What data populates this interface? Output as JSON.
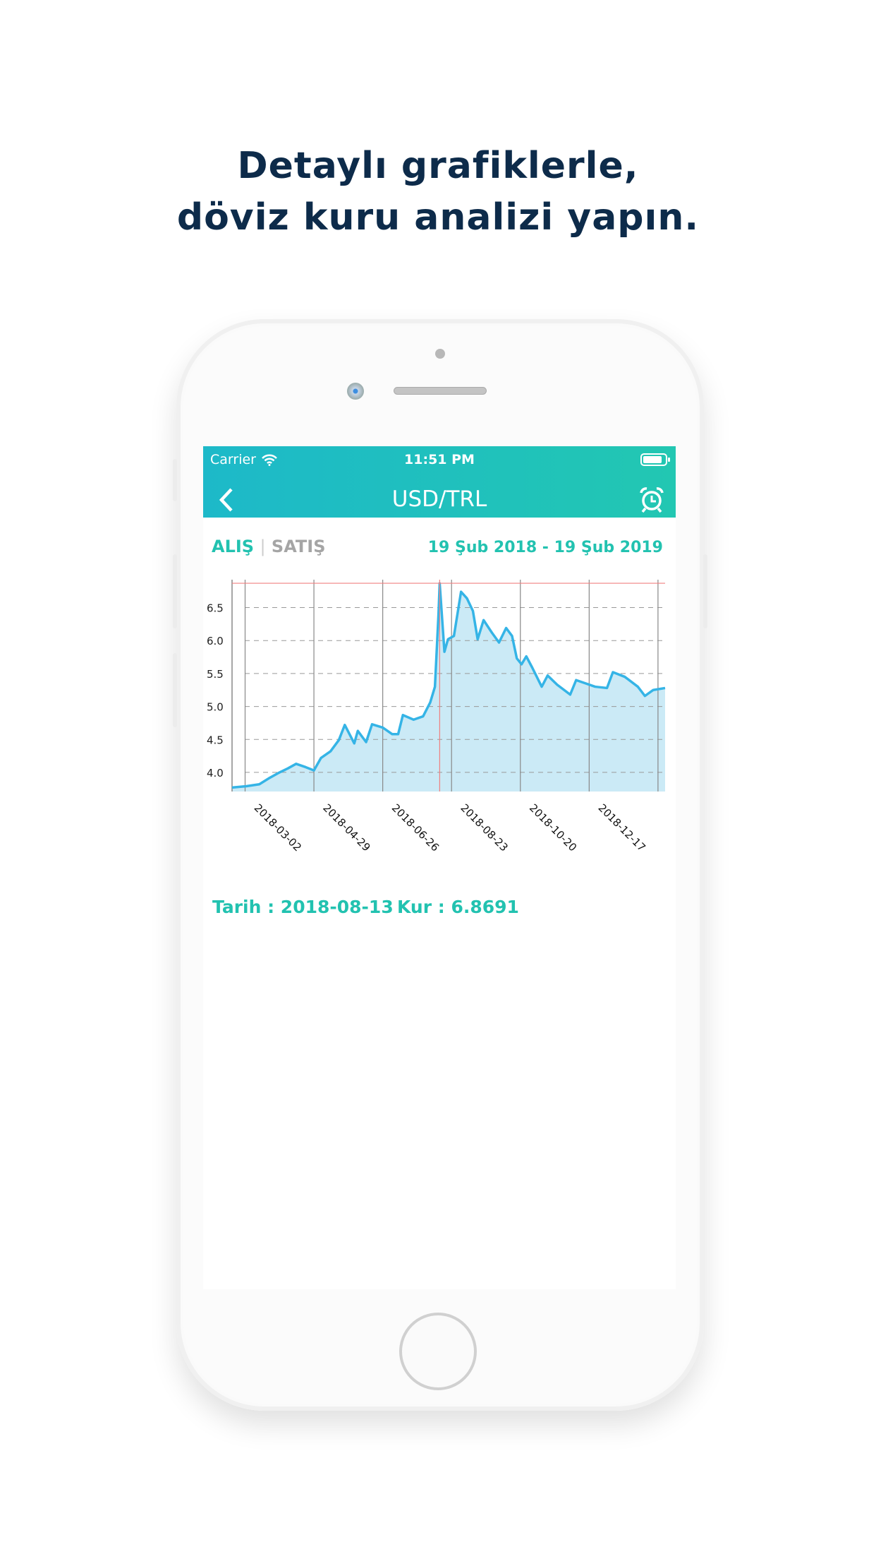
{
  "headline": {
    "line1": "Detaylı grafiklerle,",
    "line2": "döviz kuru analizi yapın."
  },
  "status_bar": {
    "carrier": "Carrier",
    "time": "11:51 PM"
  },
  "nav": {
    "title": "USD/TRL",
    "back_icon": "chevron-left-icon",
    "alarm_icon": "alarm-clock-icon"
  },
  "tabs": {
    "buy": "ALIŞ",
    "separator": "|",
    "sell": "SATIŞ",
    "active": "buy"
  },
  "date_range": "19 Şub 2018 - 19 Şub 2019",
  "selection": {
    "date_label": "Tarih : 2018-08-13",
    "rate_label": "Kur : 6.8691"
  },
  "colors": {
    "accent": "#22c2b0",
    "line": "#35b4e6",
    "fill": "#cbeaf6",
    "crosshair": "#f08080",
    "headline": "#0d2b4a"
  },
  "chart_data": {
    "type": "area",
    "xlim": [
      "2018-02-19",
      "2019-02-19"
    ],
    "ylim": [
      3.71,
      6.87
    ],
    "yticks": [
      "4.0",
      "4.5",
      "5.0",
      "5.5",
      "6.0",
      "6.5"
    ],
    "xticks": [
      "2018-03-02",
      "2018-04-29",
      "2018-06-26",
      "2018-08-23",
      "2018-10-20",
      "2018-12-17"
    ],
    "xgrid_extra": [
      "2019-02-13"
    ],
    "grid": true,
    "highlight": {
      "x": "2018-08-13",
      "y": 6.8691
    },
    "points": [
      [
        "2018-02-19",
        3.77
      ],
      [
        "2018-03-03",
        3.79
      ],
      [
        "2018-03-14",
        3.82
      ],
      [
        "2018-03-22",
        3.91
      ],
      [
        "2018-03-30",
        3.99
      ],
      [
        "2018-04-07",
        4.06
      ],
      [
        "2018-04-14",
        4.13
      ],
      [
        "2018-04-22",
        4.08
      ],
      [
        "2018-04-29",
        4.03
      ],
      [
        "2018-05-05",
        4.22
      ],
      [
        "2018-05-13",
        4.32
      ],
      [
        "2018-05-20",
        4.49
      ],
      [
        "2018-05-25",
        4.72
      ],
      [
        "2018-06-02",
        4.44
      ],
      [
        "2018-06-05",
        4.63
      ],
      [
        "2018-06-12",
        4.46
      ],
      [
        "2018-06-17",
        4.73
      ],
      [
        "2018-06-26",
        4.68
      ],
      [
        "2018-07-04",
        4.58
      ],
      [
        "2018-07-09",
        4.58
      ],
      [
        "2018-07-13",
        4.87
      ],
      [
        "2018-07-22",
        4.8
      ],
      [
        "2018-07-30",
        4.85
      ],
      [
        "2018-08-05",
        5.06
      ],
      [
        "2018-08-09",
        5.3
      ],
      [
        "2018-08-12",
        6.4
      ],
      [
        "2018-08-13",
        6.8691
      ],
      [
        "2018-08-17",
        5.83
      ],
      [
        "2018-08-20",
        6.02
      ],
      [
        "2018-08-25",
        6.07
      ],
      [
        "2018-08-31",
        6.74
      ],
      [
        "2018-09-05",
        6.64
      ],
      [
        "2018-09-10",
        6.45
      ],
      [
        "2018-09-14",
        6.02
      ],
      [
        "2018-09-19",
        6.31
      ],
      [
        "2018-09-26",
        6.12
      ],
      [
        "2018-10-02",
        5.97
      ],
      [
        "2018-10-08",
        6.19
      ],
      [
        "2018-10-13",
        6.07
      ],
      [
        "2018-10-17",
        5.73
      ],
      [
        "2018-10-21",
        5.64
      ],
      [
        "2018-10-25",
        5.76
      ],
      [
        "2018-10-30",
        5.59
      ],
      [
        "2018-11-07",
        5.3
      ],
      [
        "2018-11-12",
        5.47
      ],
      [
        "2018-11-20",
        5.33
      ],
      [
        "2018-12-01",
        5.18
      ],
      [
        "2018-12-06",
        5.4
      ],
      [
        "2018-12-14",
        5.35
      ],
      [
        "2018-12-22",
        5.3
      ],
      [
        "2019-01-01",
        5.28
      ],
      [
        "2019-01-06",
        5.52
      ],
      [
        "2019-01-16",
        5.45
      ],
      [
        "2019-01-27",
        5.3
      ],
      [
        "2019-02-02",
        5.16
      ],
      [
        "2019-02-09",
        5.25
      ],
      [
        "2019-02-19",
        5.28
      ]
    ]
  }
}
